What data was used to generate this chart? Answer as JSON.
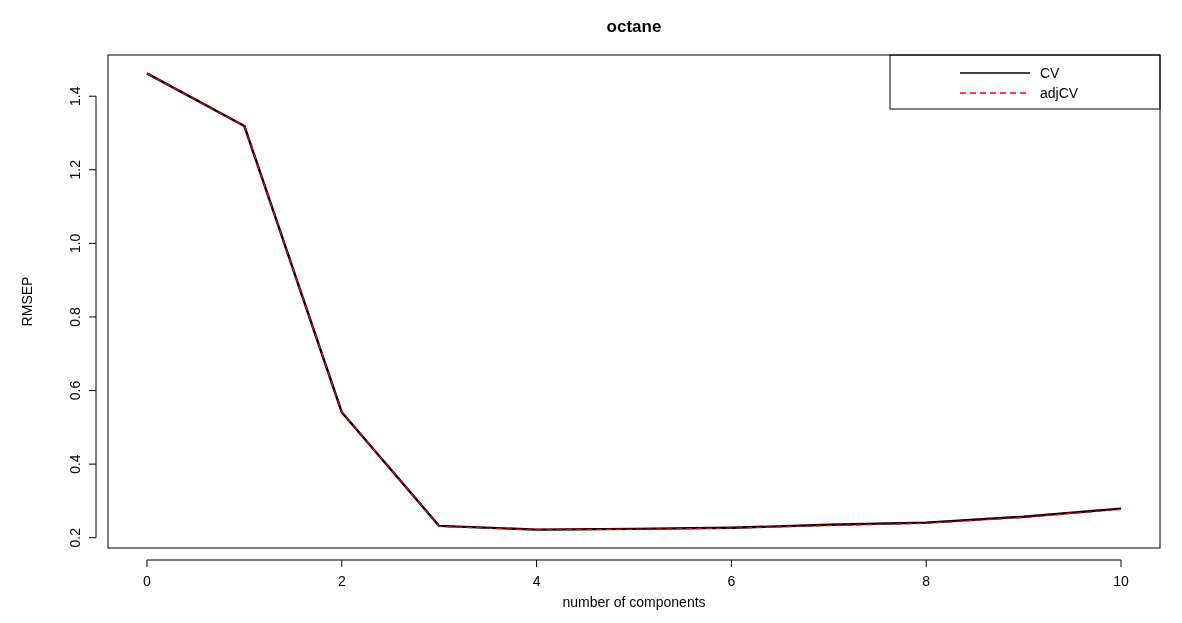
{
  "chart_data": {
    "type": "line",
    "title": "octane",
    "xlabel": "number of components",
    "ylabel": "RMSEP",
    "x": [
      0,
      1,
      2,
      3,
      4,
      5,
      6,
      7,
      8,
      9,
      10
    ],
    "series": [
      {
        "name": "CV",
        "color": "#000000",
        "line_style": "solid",
        "values": [
          1.462,
          1.319,
          0.541,
          0.232,
          0.222,
          0.224,
          0.227,
          0.235,
          0.241,
          0.257,
          0.279
        ]
      },
      {
        "name": "adjCV",
        "color": "#ff0000",
        "line_style": "dashed",
        "values": [
          1.462,
          1.319,
          0.541,
          0.231,
          0.221,
          0.223,
          0.226,
          0.233,
          0.239,
          0.255,
          0.277
        ]
      }
    ],
    "xlim": [
      -0.4,
      10.4
    ],
    "xticks": [
      0,
      2,
      4,
      6,
      8,
      10
    ],
    "ylim": [
      0.172,
      1.512
    ],
    "yticks": [
      0.2,
      0.4,
      0.6,
      0.8,
      {
        "value": 1,
        "label": "1.0"
      },
      1.2,
      1.4
    ],
    "legend": "top right",
    "grid": false
  }
}
